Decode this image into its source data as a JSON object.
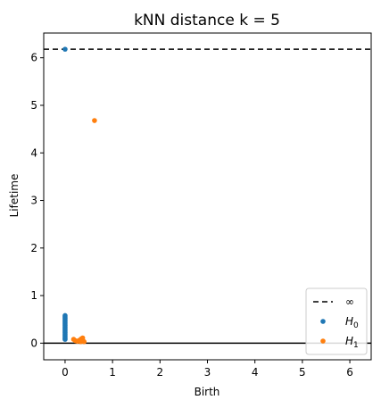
{
  "chart_data": {
    "type": "scatter",
    "title": "kNN distance k = 5",
    "xlabel": "Birth",
    "ylabel": "Lifetime",
    "xlim": [
      -0.45,
      6.45
    ],
    "ylim": [
      -0.35,
      6.52
    ],
    "xticks": [
      0,
      1,
      2,
      3,
      4,
      5,
      6
    ],
    "yticks": [
      0,
      1,
      2,
      3,
      4,
      5,
      6
    ],
    "grid": false,
    "legend_position": "lower-right",
    "infinity_line": {
      "label": "∞",
      "y": 6.18,
      "style": "dashed",
      "color": "#000000"
    },
    "baseline": {
      "y": 0,
      "color": "#000000"
    },
    "series": [
      {
        "name": "H0",
        "color": "#1f77b4",
        "points": [
          [
            0,
            6.18
          ],
          [
            0,
            0.58
          ],
          [
            0,
            0.55
          ],
          [
            0,
            0.52
          ],
          [
            0,
            0.49
          ],
          [
            0,
            0.46
          ],
          [
            0,
            0.43
          ],
          [
            0,
            0.4
          ],
          [
            0,
            0.37
          ],
          [
            0,
            0.34
          ],
          [
            0,
            0.31
          ],
          [
            0,
            0.28
          ],
          [
            0,
            0.25
          ],
          [
            0,
            0.22
          ],
          [
            0,
            0.19
          ],
          [
            0,
            0.16
          ],
          [
            0,
            0.13
          ],
          [
            0,
            0.1
          ],
          [
            0,
            0.08
          ]
        ]
      },
      {
        "name": "H1",
        "color": "#ff7f0e",
        "points": [
          [
            0.62,
            4.68
          ],
          [
            0.18,
            0.08
          ],
          [
            0.22,
            0.05
          ],
          [
            0.26,
            0.04
          ],
          [
            0.3,
            0.06
          ],
          [
            0.34,
            0.09
          ],
          [
            0.37,
            0.11
          ],
          [
            0.38,
            0.05
          ],
          [
            0.4,
            0.03
          ],
          [
            0.33,
            0.03
          ]
        ]
      }
    ]
  }
}
